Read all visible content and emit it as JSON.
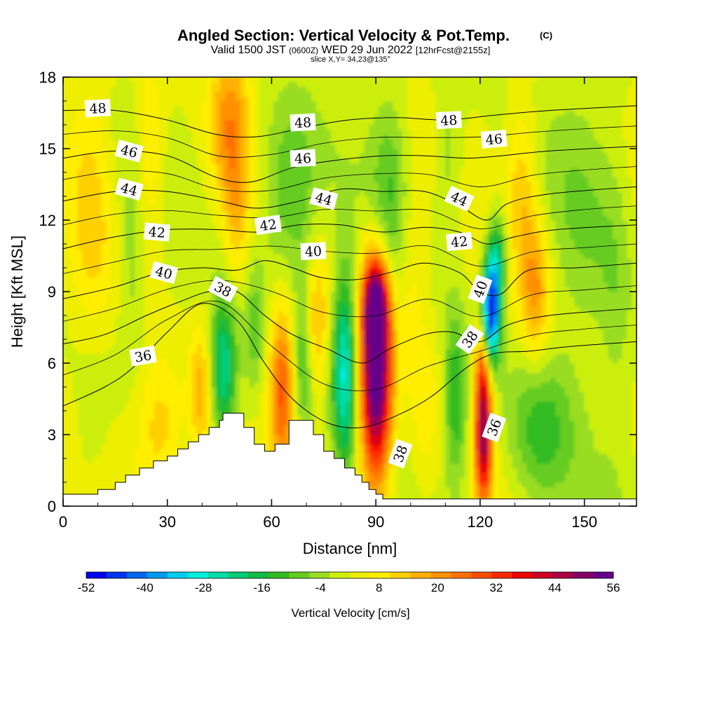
{
  "title": "Angled Section: Vertical Velocity & Pot.Temp.",
  "copyright": "(C)",
  "subtitle_main": "Valid 1500 JST",
  "subtitle_utc": "(0600Z)",
  "subtitle_date": "WED 29 Jun 2022",
  "subtitle_run": "[12hrFcst@2155z]",
  "slice": "slice X,Y= 34,23@135°",
  "chart_data": {
    "type": "heatmap",
    "xlabel": "Distance [nm]",
    "ylabel": "Height [Kft MSL]",
    "xlim": [
      0,
      165
    ],
    "ylim": [
      0,
      18
    ],
    "x_ticks": [
      "0",
      "30",
      "60",
      "90",
      "120",
      "150"
    ],
    "x_tick_values": [
      0,
      30,
      60,
      90,
      120,
      150
    ],
    "y_ticks": [
      "0",
      "3",
      "6",
      "9",
      "12",
      "15",
      "18"
    ],
    "y_tick_values": [
      0,
      3,
      6,
      9,
      12,
      15,
      18
    ],
    "colorbar_label": "Vertical Velocity [cm/s]",
    "colorbar_range": [
      -52,
      56
    ],
    "colorbar_ticks": [
      "-52",
      "-40",
      "-28",
      "-16",
      "-4",
      "8",
      "20",
      "32",
      "44",
      "56"
    ],
    "colorbar_tick_values": [
      -52,
      -40,
      -28,
      -16,
      -4,
      8,
      20,
      32,
      44,
      56
    ],
    "colorbar_colors": [
      "#0000ee",
      "#0033ee",
      "#0066ee",
      "#0099ee",
      "#00ccee",
      "#00eedd",
      "#00ddaa",
      "#00cc77",
      "#11bb44",
      "#33bb22",
      "#66cc22",
      "#99dd22",
      "#ccee11",
      "#eeee00",
      "#ffee00",
      "#ffd000",
      "#ffb000",
      "#ff9000",
      "#ff7000",
      "#ff4c00",
      "#ff2800",
      "#ee0000",
      "#cc0022",
      "#aa0044",
      "#880066",
      "#660088"
    ],
    "background_value": 2,
    "terrain": [
      [
        0,
        0.5
      ],
      [
        10,
        0.5
      ],
      [
        10,
        0.7
      ],
      [
        15,
        0.7
      ],
      [
        15,
        1.0
      ],
      [
        18,
        1.0
      ],
      [
        18,
        1.3
      ],
      [
        22,
        1.3
      ],
      [
        22,
        1.6
      ],
      [
        26,
        1.6
      ],
      [
        26,
        1.9
      ],
      [
        30,
        1.9
      ],
      [
        30,
        2.1
      ],
      [
        33,
        2.1
      ],
      [
        33,
        2.4
      ],
      [
        36,
        2.4
      ],
      [
        36,
        2.7
      ],
      [
        39,
        2.7
      ],
      [
        39,
        3.0
      ],
      [
        42,
        3.0
      ],
      [
        42,
        3.3
      ],
      [
        45,
        3.3
      ],
      [
        45,
        3.6
      ],
      [
        46,
        3.6
      ],
      [
        46,
        3.9
      ],
      [
        52,
        3.9
      ],
      [
        52,
        3.3
      ],
      [
        55,
        3.3
      ],
      [
        55,
        2.6
      ],
      [
        58,
        2.6
      ],
      [
        58,
        2.3
      ],
      [
        61,
        2.3
      ],
      [
        61,
        2.6
      ],
      [
        65,
        2.6
      ],
      [
        65,
        3.6
      ],
      [
        72,
        3.6
      ],
      [
        72,
        3.0
      ],
      [
        75,
        3.0
      ],
      [
        75,
        2.3
      ],
      [
        78,
        2.3
      ],
      [
        78,
        2.0
      ],
      [
        81,
        2.0
      ],
      [
        81,
        1.6
      ],
      [
        84,
        1.6
      ],
      [
        84,
        1.3
      ],
      [
        86,
        1.3
      ],
      [
        86,
        1.0
      ],
      [
        88,
        1.0
      ],
      [
        88,
        0.7
      ],
      [
        90,
        0.7
      ],
      [
        90,
        0.5
      ],
      [
        92,
        0.5
      ],
      [
        92,
        0.3
      ],
      [
        165,
        0.3
      ]
    ],
    "cells": [
      {
        "x": 90,
        "y": 5.5,
        "sx": 3.2,
        "sy": 3.2,
        "v": 60
      },
      {
        "x": 90,
        "y": 8.5,
        "sx": 2.5,
        "sy": 1.3,
        "v": 35
      },
      {
        "x": 81,
        "y": 5.8,
        "sx": 2.6,
        "sy": 3.0,
        "v": -30
      },
      {
        "x": 63,
        "y": 5.0,
        "sx": 2.5,
        "sy": 2.5,
        "v": 25
      },
      {
        "x": 46,
        "y": 5.8,
        "sx": 2.8,
        "sy": 2.0,
        "v": -26
      },
      {
        "x": 55,
        "y": 7.2,
        "sx": 2.0,
        "sy": 2.0,
        "v": -10
      },
      {
        "x": 40,
        "y": 4.8,
        "sx": 2.5,
        "sy": 2.0,
        "v": 16
      },
      {
        "x": 28,
        "y": 3.3,
        "sx": 5.0,
        "sy": 2.0,
        "v": 12
      },
      {
        "x": 69,
        "y": 6.0,
        "sx": 2.0,
        "sy": 2.6,
        "v": -14
      },
      {
        "x": 73,
        "y": 7.8,
        "sx": 2.5,
        "sy": 2.0,
        "v": 13
      },
      {
        "x": 113,
        "y": 4.4,
        "sx": 2.5,
        "sy": 2.6,
        "v": -18
      },
      {
        "x": 121,
        "y": 3.0,
        "sx": 1.8,
        "sy": 2.0,
        "v": 45
      },
      {
        "x": 121,
        "y": 6.0,
        "sx": 1.6,
        "sy": 1.4,
        "v": 20
      },
      {
        "x": 123,
        "y": 8.0,
        "sx": 1.8,
        "sy": 1.6,
        "v": -52
      },
      {
        "x": 125,
        "y": 10.3,
        "sx": 2.0,
        "sy": 1.4,
        "v": -22
      },
      {
        "x": 136,
        "y": 9.0,
        "sx": 3.0,
        "sy": 2.2,
        "v": 17
      },
      {
        "x": 137,
        "y": 3.2,
        "sx": 7.0,
        "sy": 2.4,
        "v": -14
      },
      {
        "x": 48,
        "y": 16.0,
        "sx": 4.0,
        "sy": 2.6,
        "v": 18
      },
      {
        "x": 50,
        "y": 12.0,
        "sx": 2.5,
        "sy": 2.0,
        "v": 10
      },
      {
        "x": 25,
        "y": 14.5,
        "sx": 3.0,
        "sy": 3.0,
        "v": 10
      },
      {
        "x": 20,
        "y": 10.5,
        "sx": 3.0,
        "sy": 3.0,
        "v": -8
      },
      {
        "x": 65,
        "y": 13.0,
        "sx": 6.0,
        "sy": 2.8,
        "v": -15
      },
      {
        "x": 94,
        "y": 13.0,
        "sx": 4.0,
        "sy": 3.0,
        "v": -12
      },
      {
        "x": 132,
        "y": 13.5,
        "sx": 3.0,
        "sy": 2.5,
        "v": 12
      },
      {
        "x": 111,
        "y": 14.5,
        "sx": 3.0,
        "sy": 2.5,
        "v": -8
      },
      {
        "x": 150,
        "y": 13.0,
        "sx": 8.0,
        "sy": 4.0,
        "v": -6
      },
      {
        "x": 8,
        "y": 12.0,
        "sx": 4.0,
        "sy": 5.0,
        "v": 8
      },
      {
        "x": 8,
        "y": 4.0,
        "sx": 4.0,
        "sy": 3.0,
        "v": -6
      },
      {
        "x": 100,
        "y": 10.0,
        "sx": 3.0,
        "sy": 3.0,
        "v": 8
      },
      {
        "x": 159,
        "y": 8.0,
        "sx": 3.0,
        "sy": 5.0,
        "v": -4
      },
      {
        "x": 104,
        "y": 4.0,
        "sx": 3.0,
        "sy": 3.0,
        "v": 6
      }
    ],
    "isentropes": [
      {
        "theta": "36",
        "points": [
          [
            0,
            4.2
          ],
          [
            12,
            5.0
          ],
          [
            20,
            5.8
          ],
          [
            30,
            7.3
          ],
          [
            40,
            8.5
          ],
          [
            50,
            7.8
          ],
          [
            58,
            6.0
          ],
          [
            66,
            4.5
          ],
          [
            76,
            3.5
          ],
          [
            86,
            3.3
          ],
          [
            96,
            3.8
          ],
          [
            106,
            4.6
          ],
          [
            116,
            5.8
          ],
          [
            124,
            6.4
          ],
          [
            134,
            6.5
          ],
          [
            146,
            6.7
          ],
          [
            165,
            6.9
          ]
        ]
      },
      {
        "theta": "38",
        "points": [
          [
            0,
            6.8
          ],
          [
            12,
            7.2
          ],
          [
            24,
            8.0
          ],
          [
            34,
            8.6
          ],
          [
            42,
            9.0
          ],
          [
            50,
            9.0
          ],
          [
            58,
            8.0
          ],
          [
            66,
            7.2
          ],
          [
            76,
            6.6
          ],
          [
            86,
            6.0
          ],
          [
            94,
            6.6
          ],
          [
            104,
            7.2
          ],
          [
            112,
            7.3
          ],
          [
            120,
            6.9
          ],
          [
            128,
            7.6
          ],
          [
            140,
            8.0
          ],
          [
            165,
            8.3
          ]
        ]
      },
      {
        "theta": "40",
        "points": [
          [
            0,
            8.7
          ],
          [
            15,
            9.2
          ],
          [
            28,
            9.8
          ],
          [
            40,
            10.0
          ],
          [
            50,
            9.9
          ],
          [
            58,
            10.3
          ],
          [
            66,
            10.0
          ],
          [
            74,
            9.6
          ],
          [
            84,
            9.5
          ],
          [
            94,
            9.8
          ],
          [
            104,
            10.2
          ],
          [
            114,
            9.8
          ],
          [
            120,
            9.0
          ],
          [
            126,
            8.9
          ],
          [
            134,
            9.9
          ],
          [
            148,
            10.0
          ],
          [
            165,
            10.2
          ]
        ]
      },
      {
        "theta": "42",
        "points": [
          [
            0,
            10.8
          ],
          [
            15,
            11.3
          ],
          [
            30,
            11.6
          ],
          [
            45,
            11.6
          ],
          [
            56,
            11.5
          ],
          [
            68,
            11.8
          ],
          [
            80,
            11.8
          ],
          [
            92,
            11.5
          ],
          [
            104,
            11.7
          ],
          [
            114,
            11.5
          ],
          [
            122,
            11.0
          ],
          [
            130,
            11.3
          ],
          [
            142,
            11.6
          ],
          [
            165,
            11.8
          ]
        ]
      },
      {
        "theta": "44",
        "points": [
          [
            0,
            12.8
          ],
          [
            15,
            13.2
          ],
          [
            30,
            13.2
          ],
          [
            45,
            12.8
          ],
          [
            56,
            12.5
          ],
          [
            68,
            12.8
          ],
          [
            80,
            13.3
          ],
          [
            92,
            13.2
          ],
          [
            104,
            13.2
          ],
          [
            114,
            12.6
          ],
          [
            122,
            12.0
          ],
          [
            128,
            12.7
          ],
          [
            140,
            13.1
          ],
          [
            165,
            13.4
          ]
        ]
      },
      {
        "theta": "46",
        "points": [
          [
            0,
            14.6
          ],
          [
            15,
            14.9
          ],
          [
            30,
            14.7
          ],
          [
            44,
            13.8
          ],
          [
            54,
            13.6
          ],
          [
            66,
            14.2
          ],
          [
            78,
            14.5
          ],
          [
            92,
            14.7
          ],
          [
            104,
            14.7
          ],
          [
            116,
            14.6
          ],
          [
            126,
            14.7
          ],
          [
            140,
            14.9
          ],
          [
            165,
            15.1
          ]
        ]
      },
      {
        "theta": "48",
        "points": [
          [
            0,
            16.6
          ],
          [
            15,
            16.6
          ],
          [
            30,
            16.2
          ],
          [
            44,
            15.6
          ],
          [
            56,
            15.5
          ],
          [
            70,
            15.9
          ],
          [
            82,
            16.2
          ],
          [
            96,
            16.3
          ],
          [
            110,
            16.2
          ],
          [
            124,
            16.4
          ],
          [
            140,
            16.6
          ],
          [
            165,
            16.8
          ]
        ]
      }
    ],
    "contour_labels": [
      {
        "text": "48",
        "x": 10,
        "y": 16.7,
        "angle": -3
      },
      {
        "text": "48",
        "x": 69,
        "y": 16.1,
        "angle": -3
      },
      {
        "text": "48",
        "x": 111,
        "y": 16.2,
        "angle": -3
      },
      {
        "text": "46",
        "x": 19,
        "y": 14.9,
        "angle": 15
      },
      {
        "text": "46",
        "x": 69,
        "y": 14.6,
        "angle": -3
      },
      {
        "text": "46",
        "x": 124,
        "y": 15.4,
        "angle": -5
      },
      {
        "text": "44",
        "x": 19,
        "y": 13.3,
        "angle": 15
      },
      {
        "text": "44",
        "x": 75,
        "y": 12.9,
        "angle": 15
      },
      {
        "text": "44",
        "x": 114,
        "y": 12.9,
        "angle": 25
      },
      {
        "text": "42",
        "x": 27,
        "y": 11.5,
        "angle": 5
      },
      {
        "text": "42",
        "x": 59,
        "y": 11.8,
        "angle": -8
      },
      {
        "text": "42",
        "x": 114,
        "y": 11.1,
        "angle": -5
      },
      {
        "text": "40",
        "x": 29,
        "y": 9.8,
        "angle": 15
      },
      {
        "text": "40",
        "x": 72,
        "y": 10.7,
        "angle": -3
      },
      {
        "text": "40",
        "x": 120,
        "y": 9.1,
        "angle": -70
      },
      {
        "text": "38",
        "x": 46,
        "y": 9.1,
        "angle": 28
      },
      {
        "text": "38",
        "x": 117,
        "y": 7.0,
        "angle": -55
      },
      {
        "text": "38",
        "x": 97,
        "y": 2.2,
        "angle": -70
      },
      {
        "text": "36",
        "x": 23,
        "y": 6.3,
        "angle": -10
      },
      {
        "text": "36",
        "x": 124,
        "y": 3.3,
        "angle": -70
      }
    ]
  }
}
